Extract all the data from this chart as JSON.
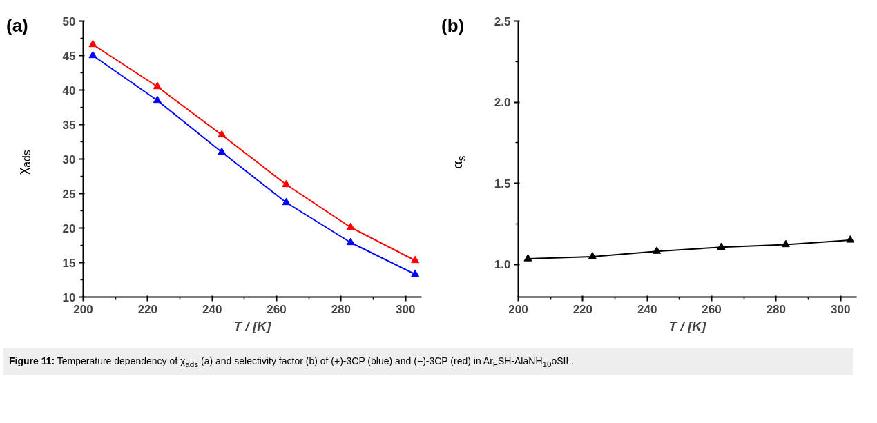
{
  "chart_data": [
    {
      "type": "line",
      "xlabel": "T / [K]",
      "ylabel": "χ$_{ads}$",
      "annotations": [
        "(a)"
      ],
      "marker": "triangle",
      "line_style": "solid",
      "grid": false,
      "x": [
        203,
        223,
        243,
        263,
        283,
        303
      ],
      "series": [
        {
          "color": "#ff0000",
          "values": [
            46.6,
            40.5,
            33.5,
            26.3,
            20.1,
            15.3
          ]
        },
        {
          "color": "#0000ff",
          "values": [
            45.0,
            38.5,
            31.0,
            23.7,
            17.9,
            13.3
          ]
        }
      ],
      "xlim": [
        200,
        305
      ],
      "xticks": [
        200,
        {
          "value": 210,
          "label": null
        },
        220,
        {
          "value": 230,
          "label": null
        },
        240,
        {
          "value": 250,
          "label": null
        },
        260,
        {
          "value": 270,
          "label": null
        },
        280,
        {
          "value": 290,
          "label": null
        },
        300
      ],
      "ylim": [
        10,
        50
      ],
      "yticks": [
        10,
        {
          "value": 12.5,
          "label": null
        },
        15,
        {
          "value": 17.5,
          "label": null
        },
        20,
        {
          "value": 22.5,
          "label": null
        },
        25,
        {
          "value": 27.5,
          "label": null
        },
        30,
        {
          "value": 32.5,
          "label": null
        },
        35,
        {
          "value": 37.5,
          "label": null
        },
        40,
        {
          "value": 42.5,
          "label": null
        },
        45,
        {
          "value": 47.5,
          "label": null
        },
        50
      ]
    },
    {
      "type": "line",
      "xlabel": "T / [K]",
      "ylabel": "α$_{s}$",
      "annotations": [
        "(b)",
        "Figure 11: Temperature dependency of χ$_{ads}$ (a) and selectivity factor (b) of (+)-3CP (blue) and (−)-3CP (red) in Ar$_{F}$SH-AlaNH$_{10}$oSIL."
      ],
      "marker": "triangle",
      "line_style": "solid",
      "grid": false,
      "x": [
        203,
        223,
        243,
        263,
        283,
        303
      ],
      "series": [
        {
          "color": "#000000",
          "values": [
            1.036,
            1.049,
            1.082,
            1.107,
            1.123,
            1.151
          ]
        }
      ],
      "xlim": [
        200,
        305
      ],
      "xticks": [
        200,
        {
          "value": 210,
          "label": null
        },
        220,
        {
          "value": 230,
          "label": null
        },
        240,
        {
          "value": 250,
          "label": null
        },
        260,
        {
          "value": 270,
          "label": null
        },
        280,
        {
          "value": 290,
          "label": null
        },
        300
      ],
      "ylim": [
        0.8,
        2.5
      ],
      "yticks": [
        {
          "value": 1.0,
          "label": "1.0"
        },
        {
          "value": 1.25,
          "label": null
        },
        {
          "value": 1.5,
          "label": "1.5"
        },
        {
          "value": 1.75,
          "label": null
        },
        {
          "value": 2.0,
          "label": "2.0"
        },
        {
          "value": 2.25,
          "label": null
        },
        {
          "value": 2.5,
          "label": "2.5"
        }
      ]
    }
  ]
}
